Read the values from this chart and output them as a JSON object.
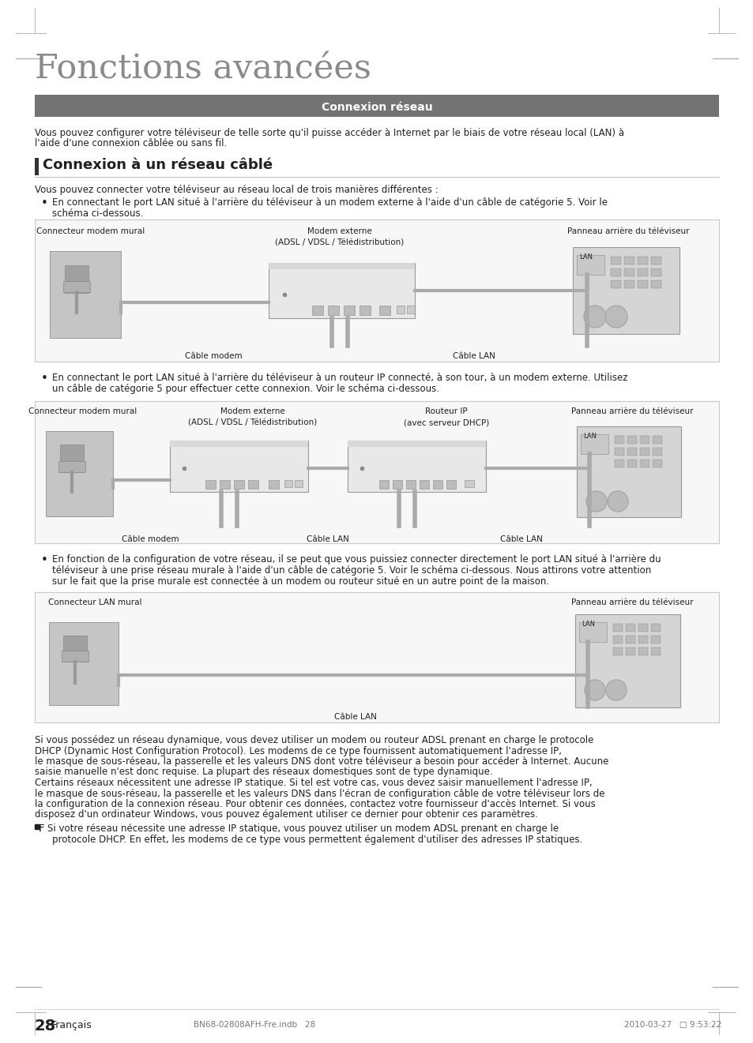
{
  "title": "Fonctions avancées",
  "section_header": "Connexion réseau",
  "section_header_bg": "#737373",
  "section_header_color": "#ffffff",
  "subsection_title": "Connexion à un réseau câblé",
  "subsection_bar_color": "#333333",
  "intro_line1": "Vous pouvez configurer votre téléviseur de telle sorte qu'il puisse accéder à Internet par le biais de votre réseau local (LAN) à",
  "intro_line2": "l'aide d'une connexion câblée ou sans fil.",
  "sub_intro": "Vous pouvez connecter votre téléviseur au réseau local de trois manières différentes :",
  "bullet1_line1": "En connectant le port LAN situé à l'arrière du téléviseur à un modem externe à l'aide d'un câble de catégorie 5. Voir le",
  "bullet1_line2": "schéma ci-dessous.",
  "bullet2_line1": "En connectant le port LAN situé à l'arrière du téléviseur à un routeur IP connecté, à son tour, à un modem externe. Utilisez",
  "bullet2_line2": "un câble de catégorie 5 pour effectuer cette connexion. Voir le schéma ci-dessous.",
  "bullet3_line1": "En fonction de la configuration de votre réseau, il se peut que vous puissiez connecter directement le port LAN situé à l'arrière du",
  "bullet3_line2": "téléviseur à une prise réseau murale à l'aide d'un câble de catégorie 5. Voir le schéma ci-dessous. Nous attirons votre attention",
  "bullet3_line3": "sur le fait que la prise murale est connectée à un modem ou routeur situé en un autre point de la maison.",
  "d1_label_left": "Connecteur modem mural",
  "d1_label_center": "Modem externe\n(ADSL / VDSL / Télédistribution)",
  "d1_label_right": "Panneau arrière du téléviseur",
  "d1_cable_left": "Câble modem",
  "d1_cable_right": "Câble LAN",
  "d1_lan": "LAN",
  "d2_label_left": "Connecteur modem mural",
  "d2_label_cleft": "Modem externe\n(ADSL / VDSL / Télédistribution)",
  "d2_label_cright": "Routeur IP\n(avec serveur DHCP)",
  "d2_label_right": "Panneau arrière du téléviseur",
  "d2_cable_left": "Câble modem",
  "d2_cable_center": "Câble LAN",
  "d2_cable_right": "Câble LAN",
  "d2_lan": "LAN",
  "d3_label_left": "Connecteur LAN mural",
  "d3_label_right": "Panneau arrière du téléviseur",
  "d3_cable": "Câble LAN",
  "d3_lan": "LAN",
  "para1_lines": [
    "Si vous possédez un réseau dynamique, vous devez utiliser un modem ou routeur ADSL prenant en charge le protocole",
    "DHCP (Dynamic Host Configuration Protocol). Les modems de ce type fournissent automatiquement l'adresse IP,",
    "le masque de sous-réseau, la passerelle et les valeurs DNS dont votre téléviseur a besoin pour accéder à Internet. Aucune",
    "saisie manuelle n'est donc requise. La plupart des réseaux domestiques sont de type dynamique."
  ],
  "para2_lines": [
    "Certains réseaux nécessitent une adresse IP statique. Si tel est votre cas, vous devez saisir manuellement l'adresse IP,",
    "le masque de sous-réseau, la passerelle et les valeurs DNS dans l'écran de configuration câble de votre téléviseur lors de",
    "la configuration de la connexion réseau. Pour obtenir ces données, contactez votre fournisseur d'accès Internet. Si vous",
    "disposez d'un ordinateur Windows, vous pouvez également utiliser ce dernier pour obtenir ces paramètres."
  ],
  "note_line1": "Si votre réseau nécessite une adresse IP statique, vous pouvez utiliser un modem ADSL prenant en charge le",
  "note_line2": "protocole DHCP. En effet, les modems de ce type vous permettent également d'utiliser des adresses IP statiques.",
  "footer_page": "28",
  "footer_label": "Français",
  "footer_file": "BN68-02808AFH-Fre.indb   28",
  "footer_date": "2010-03-27   □ 9:53:22",
  "bg_color": "#ffffff",
  "text_color": "#231f20",
  "light_gray": "#aaaaaa",
  "diagram_bg": "#f7f7f7",
  "diagram_border": "#c8c8c8",
  "wall_color": "#c8c8c8",
  "device_color": "#e0e0e0",
  "device_border": "#999999",
  "cable_color": "#888888"
}
